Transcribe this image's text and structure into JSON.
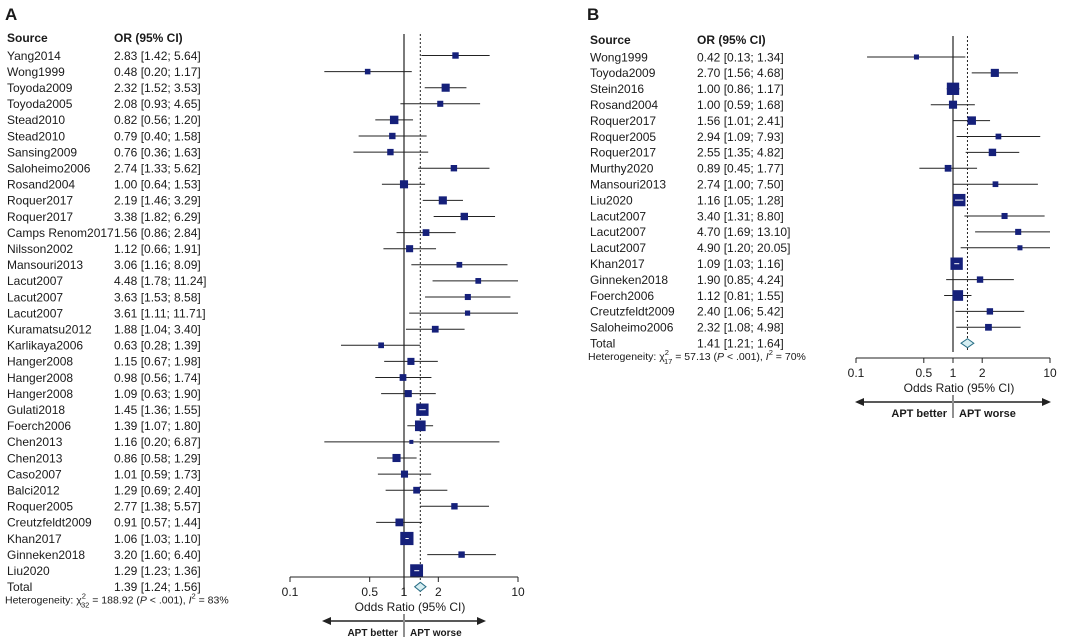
{
  "chart_data": [
    {
      "type": "forest",
      "panel_label": "A",
      "title": "",
      "col_source": "Source",
      "col_or": "OR (95% CI)",
      "xlabel": "Odds Ratio (95% CI)",
      "xscale": "log",
      "xlim": [
        0.1,
        10
      ],
      "ticks": [
        0.1,
        0.5,
        1,
        2,
        10
      ],
      "tick_labels": [
        "0.1",
        "0.5",
        "1",
        "2",
        "10"
      ],
      "arrow_left": "APT better",
      "arrow_right": "APT worse",
      "heterogeneity_text": "Heterogeneity: χ²₃₂ = 188.92 (P < .001), I² = 83%",
      "studies": [
        {
          "source": "Yang2014",
          "or": 2.83,
          "lo": 1.42,
          "hi": 5.64,
          "text": "2.83 [1.42; 5.64]",
          "w": 2
        },
        {
          "source": "Wong1999",
          "or": 0.48,
          "lo": 0.2,
          "hi": 1.17,
          "text": "0.48 [0.20; 1.17]",
          "w": 1.5
        },
        {
          "source": "Toyoda2009",
          "or": 2.32,
          "lo": 1.52,
          "hi": 3.53,
          "text": "2.32 [1.52; 3.53]",
          "w": 3
        },
        {
          "source": "Toyoda2005",
          "or": 2.08,
          "lo": 0.93,
          "hi": 4.65,
          "text": "2.08 [0.93; 4.65]",
          "w": 1.8
        },
        {
          "source": "Stead2010",
          "or": 0.82,
          "lo": 0.56,
          "hi": 1.2,
          "text": "0.82 [0.56; 1.20]",
          "w": 3.2
        },
        {
          "source": "Stead2010",
          "or": 0.79,
          "lo": 0.4,
          "hi": 1.58,
          "text": "0.79 [0.40; 1.58]",
          "w": 2
        },
        {
          "source": "Sansing2009",
          "or": 0.76,
          "lo": 0.36,
          "hi": 1.63,
          "text": "0.76 [0.36; 1.63]",
          "w": 2
        },
        {
          "source": "Saloheimo2006",
          "or": 2.74,
          "lo": 1.33,
          "hi": 5.62,
          "text": "2.74 [1.33; 5.62]",
          "w": 2
        },
        {
          "source": "Rosand2004",
          "or": 1.0,
          "lo": 0.64,
          "hi": 1.53,
          "text": "1.00 [0.64; 1.53]",
          "w": 3
        },
        {
          "source": "Roquer2017",
          "or": 2.19,
          "lo": 1.46,
          "hi": 3.29,
          "text": "2.19 [1.46; 3.29]",
          "w": 3
        },
        {
          "source": "Roquer2017",
          "or": 3.38,
          "lo": 1.82,
          "hi": 6.29,
          "text": "3.38 [1.82; 6.29]",
          "w": 2.6
        },
        {
          "source": "Camps Renom2017",
          "or": 1.56,
          "lo": 0.86,
          "hi": 2.84,
          "text": "1.56 [0.86; 2.84]",
          "w": 2.2
        },
        {
          "source": "Nilsson2002",
          "or": 1.12,
          "lo": 0.66,
          "hi": 1.91,
          "text": "1.12 [0.66; 1.91]",
          "w": 2.4
        },
        {
          "source": "Mansouri2013",
          "or": 3.06,
          "lo": 1.16,
          "hi": 8.09,
          "text": "3.06 [1.16; 8.09]",
          "w": 1.6
        },
        {
          "source": "Lacut2007",
          "or": 4.48,
          "lo": 1.78,
          "hi": 11.24,
          "text": "4.48 [1.78; 11.24]",
          "w": 1.6
        },
        {
          "source": "Lacut2007",
          "or": 3.63,
          "lo": 1.53,
          "hi": 8.58,
          "text": "3.63 [1.53; 8.58]",
          "w": 1.8
        },
        {
          "source": "Lacut2007",
          "or": 3.61,
          "lo": 1.11,
          "hi": 11.71,
          "text": "3.61 [1.11; 11.71]",
          "w": 1.3
        },
        {
          "source": "Kuramatsu2012",
          "or": 1.88,
          "lo": 1.04,
          "hi": 3.4,
          "text": "1.88 [1.04; 3.40]",
          "w": 2.2
        },
        {
          "source": "Karlikaya2006",
          "or": 0.63,
          "lo": 0.28,
          "hi": 1.39,
          "text": "0.63 [0.28; 1.39]",
          "w": 1.6
        },
        {
          "source": "Hanger2008",
          "or": 1.15,
          "lo": 0.67,
          "hi": 1.98,
          "text": "1.15 [0.67; 1.98]",
          "w": 2.4
        },
        {
          "source": "Hanger2008",
          "or": 0.98,
          "lo": 0.56,
          "hi": 1.74,
          "text": "0.98 [0.56; 1.74]",
          "w": 2.2
        },
        {
          "source": "Hanger2008",
          "or": 1.09,
          "lo": 0.63,
          "hi": 1.9,
          "text": "1.09 [0.63; 1.90]",
          "w": 2.4
        },
        {
          "source": "Gulati2018",
          "or": 1.45,
          "lo": 1.36,
          "hi": 1.55,
          "text": "1.45 [1.36; 1.55]",
          "w": 5.5,
          "ci_inside": true
        },
        {
          "source": "Foerch2006",
          "or": 1.39,
          "lo": 1.07,
          "hi": 1.8,
          "text": "1.39 [1.07; 1.80]",
          "w": 4.5
        },
        {
          "source": "Chen2013",
          "or": 1.16,
          "lo": 0.2,
          "hi": 6.87,
          "text": "1.16 [0.20; 6.87]",
          "w": 0.6
        },
        {
          "source": "Chen2013",
          "or": 0.86,
          "lo": 0.58,
          "hi": 1.29,
          "text": "0.86 [0.58; 1.29]",
          "w": 3
        },
        {
          "source": "Caso2007",
          "or": 1.01,
          "lo": 0.59,
          "hi": 1.73,
          "text": "1.01 [0.59; 1.73]",
          "w": 2.4
        },
        {
          "source": "Balci2012",
          "or": 1.29,
          "lo": 0.69,
          "hi": 2.4,
          "text": "1.29 [0.69; 2.40]",
          "w": 2.2
        },
        {
          "source": "Roquer2005",
          "or": 2.77,
          "lo": 1.38,
          "hi": 5.57,
          "text": "2.77 [1.38; 5.57]",
          "w": 2
        },
        {
          "source": "Creutzfeldt2009",
          "or": 0.91,
          "lo": 0.57,
          "hi": 1.44,
          "text": "0.91 [0.57; 1.44]",
          "w": 2.8
        },
        {
          "source": "Khan2017",
          "or": 1.06,
          "lo": 1.03,
          "hi": 1.1,
          "text": "1.06 [1.03; 1.10]",
          "w": 6,
          "ci_inside": true
        },
        {
          "source": "Ginneken2018",
          "or": 3.2,
          "lo": 1.6,
          "hi": 6.4,
          "text": "3.20 [1.60; 6.40]",
          "w": 2
        },
        {
          "source": "Liu2020",
          "or": 1.29,
          "lo": 1.23,
          "hi": 1.36,
          "text": "1.29 [1.23; 1.36]",
          "w": 5.8,
          "ci_inside": true
        }
      ],
      "total": {
        "source": "Total",
        "or": 1.39,
        "lo": 1.24,
        "hi": 1.56,
        "text": "1.39 [1.24; 1.56]"
      }
    },
    {
      "type": "forest",
      "panel_label": "B",
      "title": "",
      "col_source": "Source",
      "col_or": "OR (95% CI)",
      "xlabel": "Odds Ratio (95% CI)",
      "xscale": "log",
      "xlim": [
        0.1,
        10
      ],
      "ticks": [
        0.1,
        0.5,
        1,
        2,
        10
      ],
      "tick_labels": [
        "0.1",
        "0.5",
        "1",
        "2",
        "10"
      ],
      "arrow_left": "APT better",
      "arrow_right": "APT worse",
      "heterogeneity_text": "Heterogeneity: χ²₁₇ = 57.13 (P < .001), I² = 70%",
      "studies": [
        {
          "source": "Wong1999",
          "or": 0.42,
          "lo": 0.13,
          "hi": 1.34,
          "text": "0.42 [0.13; 1.34]",
          "w": 1.2
        },
        {
          "source": "Toyoda2009",
          "or": 2.7,
          "lo": 1.56,
          "hi": 4.68,
          "text": "2.70 [1.56; 4.68]",
          "w": 3
        },
        {
          "source": "Stein2016",
          "or": 1.0,
          "lo": 0.86,
          "hi": 1.17,
          "text": "1.00 [0.86; 1.17]",
          "w": 5.5
        },
        {
          "source": "Rosand2004",
          "or": 1.0,
          "lo": 0.59,
          "hi": 1.68,
          "text": "1.00 [0.59; 1.68]",
          "w": 3
        },
        {
          "source": "Roquer2017",
          "or": 1.56,
          "lo": 1.01,
          "hi": 2.41,
          "text": "1.56 [1.01; 2.41]",
          "w": 3.2
        },
        {
          "source": "Roquer2005",
          "or": 2.94,
          "lo": 1.09,
          "hi": 7.93,
          "text": "2.94 [1.09; 7.93]",
          "w": 1.6
        },
        {
          "source": "Roquer2017",
          "or": 2.55,
          "lo": 1.35,
          "hi": 4.82,
          "text": "2.55 [1.35; 4.82]",
          "w": 2.6
        },
        {
          "source": "Murthy2020",
          "or": 0.89,
          "lo": 0.45,
          "hi": 1.77,
          "text": "0.89 [0.45; 1.77]",
          "w": 2.2
        },
        {
          "source": "Mansouri2013",
          "or": 2.74,
          "lo": 1.0,
          "hi": 7.5,
          "text": "2.74 [1.00; 7.50]",
          "w": 1.6
        },
        {
          "source": "Liu2020",
          "or": 1.16,
          "lo": 1.05,
          "hi": 1.28,
          "text": "1.16 [1.05; 1.28]",
          "w": 5.5,
          "ci_inside": true
        },
        {
          "source": "Lacut2007",
          "or": 3.4,
          "lo": 1.31,
          "hi": 8.8,
          "text": "3.40 [1.31; 8.80]",
          "w": 1.8
        },
        {
          "source": "Lacut2007",
          "or": 4.7,
          "lo": 1.69,
          "hi": 13.1,
          "text": "4.70 [1.69; 13.10]",
          "w": 1.8
        },
        {
          "source": "Lacut2007",
          "or": 4.9,
          "lo": 1.2,
          "hi": 20.05,
          "text": "4.90 [1.20; 20.05]",
          "w": 1.2
        },
        {
          "source": "Khan2017",
          "or": 1.09,
          "lo": 1.03,
          "hi": 1.16,
          "text": "1.09 [1.03; 1.16]",
          "w": 5.5,
          "ci_inside": true
        },
        {
          "source": "Ginneken2018",
          "or": 1.9,
          "lo": 0.85,
          "hi": 4.24,
          "text": "1.90 [0.85; 4.24]",
          "w": 2
        },
        {
          "source": "Foerch2006",
          "or": 1.12,
          "lo": 0.81,
          "hi": 1.55,
          "text": "1.12 [0.81; 1.55]",
          "w": 4.5
        },
        {
          "source": "Creutzfeldt2009",
          "or": 2.4,
          "lo": 1.06,
          "hi": 5.42,
          "text": "2.40 [1.06; 5.42]",
          "w": 2
        },
        {
          "source": "Saloheimo2006",
          "or": 2.32,
          "lo": 1.08,
          "hi": 4.98,
          "text": "2.32 [1.08; 4.98]",
          "w": 2.2
        }
      ],
      "total": {
        "source": "Total",
        "or": 1.41,
        "lo": 1.21,
        "hi": 1.64,
        "text": "1.41 [1.21; 1.64]"
      }
    }
  ],
  "colors": {
    "marker": "#15207a",
    "marker_cross": "#ffffff",
    "diamond_fill": "#d6eef2",
    "diamond_stroke": "#2a6f86",
    "line": "#222222"
  }
}
